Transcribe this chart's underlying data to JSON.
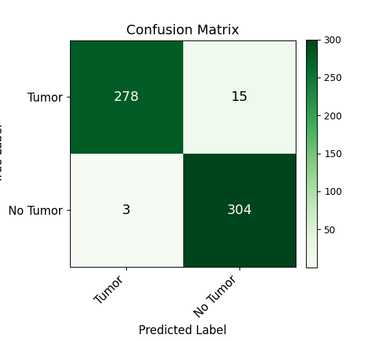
{
  "title": "Confusion Matrix",
  "matrix": [
    [
      278,
      15
    ],
    [
      3,
      304
    ]
  ],
  "x_labels": [
    "Tumor",
    "No Tumor"
  ],
  "y_labels": [
    "Tumor",
    "No Tumor"
  ],
  "xlabel": "Predicted Label",
  "colormap": "Greens",
  "vmin": 0,
  "vmax": 300,
  "text_colors": {
    "dark_bg": "white",
    "light_bg": "black"
  },
  "threshold": 150,
  "title_fontsize": 14,
  "label_fontsize": 12,
  "tick_fontsize": 12,
  "annot_fontsize": 14,
  "cbar_tick_fontsize": 10,
  "figsize": [
    5.64,
    4.97
  ],
  "dpi": 100
}
